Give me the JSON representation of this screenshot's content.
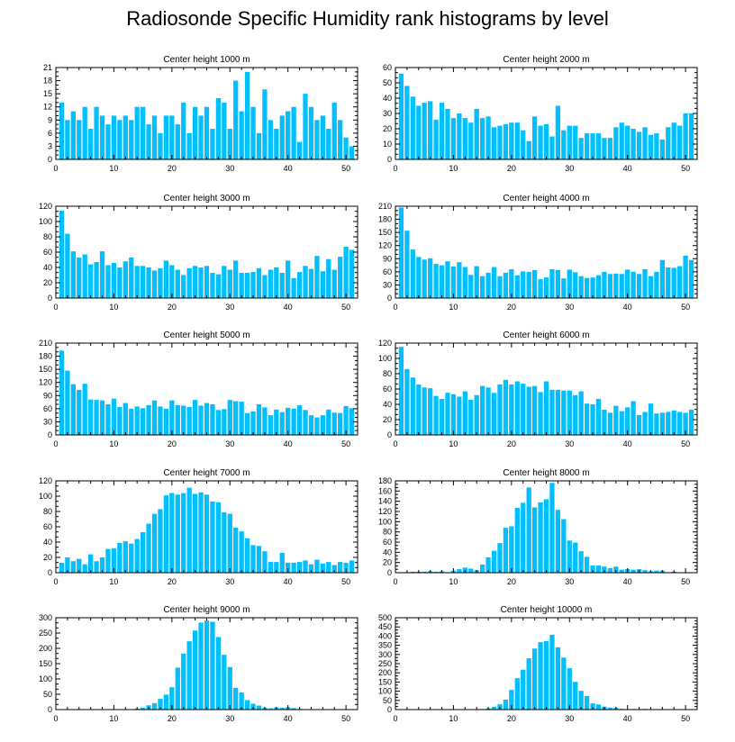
{
  "title": "Radiosonde Specific Humidity rank histograms by level",
  "colors": {
    "bar": "#00BFFF",
    "axis": "#000000",
    "background": "#ffffff"
  },
  "chart_data": [
    {
      "type": "bar",
      "title": "Center height 1000 m",
      "xlabel": "",
      "ylabel": "",
      "xlim": [
        0,
        52
      ],
      "ylim": [
        0,
        21
      ],
      "xticks": [
        0,
        10,
        20,
        30,
        40,
        50
      ],
      "yticks": [
        0,
        3,
        6,
        9,
        12,
        15,
        18,
        21
      ],
      "x": [
        1,
        2,
        3,
        4,
        5,
        6,
        7,
        8,
        9,
        10,
        11,
        12,
        13,
        14,
        15,
        16,
        17,
        18,
        19,
        20,
        21,
        22,
        23,
        24,
        25,
        26,
        27,
        28,
        29,
        30,
        31,
        32,
        33,
        34,
        35,
        36,
        37,
        38,
        39,
        40,
        41,
        42,
        43,
        44,
        45,
        46,
        47,
        48,
        49,
        50,
        51
      ],
      "values": [
        13,
        9,
        11,
        9,
        12,
        7,
        12,
        10,
        8,
        10,
        9,
        10,
        9,
        12,
        12,
        8,
        10,
        6,
        10,
        10,
        8,
        13,
        6,
        12,
        10,
        12,
        7,
        14,
        13,
        7,
        18,
        11,
        20,
        12,
        6,
        16,
        9,
        7,
        10,
        11,
        12,
        4,
        15,
        12,
        9,
        10,
        7,
        13,
        9,
        5,
        3
      ]
    },
    {
      "type": "bar",
      "title": "Center height 2000 m",
      "xlabel": "",
      "ylabel": "",
      "xlim": [
        0,
        52
      ],
      "ylim": [
        0,
        60
      ],
      "xticks": [
        0,
        10,
        20,
        30,
        40,
        50
      ],
      "yticks": [
        0,
        10,
        20,
        30,
        40,
        50,
        60
      ],
      "x": [
        1,
        2,
        3,
        4,
        5,
        6,
        7,
        8,
        9,
        10,
        11,
        12,
        13,
        14,
        15,
        16,
        17,
        18,
        19,
        20,
        21,
        22,
        23,
        24,
        25,
        26,
        27,
        28,
        29,
        30,
        31,
        32,
        33,
        34,
        35,
        36,
        37,
        38,
        39,
        40,
        41,
        42,
        43,
        44,
        45,
        46,
        47,
        48,
        49,
        50,
        51
      ],
      "values": [
        56,
        48,
        41,
        35,
        37,
        38,
        26,
        37,
        33,
        27,
        30,
        27,
        24,
        33,
        27,
        28,
        21,
        22,
        23,
        24,
        24,
        19,
        12,
        28,
        22,
        23,
        15,
        35,
        19,
        22,
        22,
        14,
        17,
        17,
        17,
        14,
        14,
        21,
        24,
        22,
        20,
        18,
        21,
        16,
        17,
        13,
        21,
        24,
        22,
        30,
        30
      ]
    },
    {
      "type": "bar",
      "title": "Center height 3000 m",
      "xlabel": "",
      "ylabel": "",
      "xlim": [
        0,
        52
      ],
      "ylim": [
        0,
        120
      ],
      "xticks": [
        0,
        10,
        20,
        30,
        40,
        50
      ],
      "yticks": [
        0,
        20,
        40,
        60,
        80,
        100,
        120
      ],
      "x": [
        1,
        2,
        3,
        4,
        5,
        6,
        7,
        8,
        9,
        10,
        11,
        12,
        13,
        14,
        15,
        16,
        17,
        18,
        19,
        20,
        21,
        22,
        23,
        24,
        25,
        26,
        27,
        28,
        29,
        30,
        31,
        32,
        33,
        34,
        35,
        36,
        37,
        38,
        39,
        40,
        41,
        42,
        43,
        44,
        45,
        46,
        47,
        48,
        49,
        50,
        51
      ],
      "values": [
        114,
        84,
        61,
        53,
        57,
        44,
        47,
        61,
        43,
        46,
        40,
        48,
        53,
        42,
        42,
        40,
        36,
        39,
        49,
        43,
        37,
        30,
        39,
        42,
        40,
        42,
        33,
        31,
        42,
        37,
        49,
        33,
        33,
        34,
        39,
        30,
        37,
        40,
        33,
        49,
        26,
        34,
        42,
        38,
        55,
        35,
        51,
        37,
        54,
        67,
        63
      ]
    },
    {
      "type": "bar",
      "title": "Center height 4000 m",
      "xlabel": "",
      "ylabel": "",
      "xlim": [
        0,
        52
      ],
      "ylim": [
        0,
        210
      ],
      "xticks": [
        0,
        10,
        20,
        30,
        40,
        50
      ],
      "yticks": [
        0,
        30,
        60,
        90,
        120,
        150,
        180,
        210
      ],
      "x": [
        1,
        2,
        3,
        4,
        5,
        6,
        7,
        8,
        9,
        10,
        11,
        12,
        13,
        14,
        15,
        16,
        17,
        18,
        19,
        20,
        21,
        22,
        23,
        24,
        25,
        26,
        27,
        28,
        29,
        30,
        31,
        32,
        33,
        34,
        35,
        36,
        37,
        38,
        39,
        40,
        41,
        42,
        43,
        44,
        45,
        46,
        47,
        48,
        49,
        50,
        51
      ],
      "values": [
        207,
        154,
        111,
        94,
        88,
        91,
        78,
        75,
        84,
        72,
        82,
        71,
        53,
        73,
        50,
        58,
        71,
        50,
        58,
        66,
        52,
        61,
        60,
        64,
        43,
        47,
        66,
        64,
        45,
        65,
        59,
        50,
        46,
        47,
        52,
        60,
        55,
        56,
        55,
        65,
        60,
        55,
        66,
        50,
        60,
        87,
        70,
        69,
        73,
        97,
        87
      ]
    },
    {
      "type": "bar",
      "title": "Center height 5000 m",
      "xlabel": "",
      "ylabel": "",
      "xlim": [
        0,
        52
      ],
      "ylim": [
        0,
        210
      ],
      "xticks": [
        0,
        10,
        20,
        30,
        40,
        50
      ],
      "yticks": [
        0,
        30,
        60,
        90,
        120,
        150,
        180,
        210
      ],
      "x": [
        1,
        2,
        3,
        4,
        5,
        6,
        7,
        8,
        9,
        10,
        11,
        12,
        13,
        14,
        15,
        16,
        17,
        18,
        19,
        20,
        21,
        22,
        23,
        24,
        25,
        26,
        27,
        28,
        29,
        30,
        31,
        32,
        33,
        34,
        35,
        36,
        37,
        38,
        39,
        40,
        41,
        42,
        43,
        44,
        45,
        46,
        47,
        48,
        49,
        50,
        51
      ],
      "values": [
        193,
        147,
        116,
        103,
        117,
        81,
        80,
        79,
        70,
        83,
        64,
        73,
        60,
        65,
        61,
        68,
        79,
        65,
        60,
        79,
        68,
        67,
        64,
        80,
        67,
        73,
        70,
        57,
        59,
        80,
        77,
        76,
        50,
        54,
        70,
        63,
        45,
        58,
        52,
        62,
        60,
        68,
        57,
        45,
        40,
        45,
        58,
        51,
        50,
        66,
        61
      ]
    },
    {
      "type": "bar",
      "title": "Center height 6000 m",
      "xlabel": "",
      "ylabel": "",
      "xlim": [
        0,
        52
      ],
      "ylim": [
        0,
        120
      ],
      "xticks": [
        0,
        10,
        20,
        30,
        40,
        50
      ],
      "yticks": [
        0,
        20,
        40,
        60,
        80,
        100,
        120
      ],
      "x": [
        1,
        2,
        3,
        4,
        5,
        6,
        7,
        8,
        9,
        10,
        11,
        12,
        13,
        14,
        15,
        16,
        17,
        18,
        19,
        20,
        21,
        22,
        23,
        24,
        25,
        26,
        27,
        28,
        29,
        30,
        31,
        32,
        33,
        34,
        35,
        36,
        37,
        38,
        39,
        40,
        41,
        42,
        43,
        44,
        45,
        46,
        47,
        48,
        49,
        50,
        51
      ],
      "values": [
        115,
        86,
        75,
        66,
        62,
        61,
        51,
        47,
        55,
        53,
        50,
        57,
        46,
        52,
        64,
        62,
        55,
        66,
        72,
        66,
        70,
        67,
        63,
        64,
        56,
        70,
        59,
        59,
        58,
        58,
        52,
        57,
        41,
        40,
        47,
        33,
        29,
        38,
        31,
        36,
        44,
        26,
        30,
        41,
        28,
        29,
        30,
        32,
        30,
        29,
        33
      ]
    },
    {
      "type": "bar",
      "title": "Center height 7000 m",
      "xlabel": "",
      "ylabel": "",
      "xlim": [
        0,
        52
      ],
      "ylim": [
        0,
        120
      ],
      "xticks": [
        0,
        10,
        20,
        30,
        40,
        50
      ],
      "yticks": [
        0,
        20,
        40,
        60,
        80,
        100,
        120
      ],
      "x": [
        1,
        2,
        3,
        4,
        5,
        6,
        7,
        8,
        9,
        10,
        11,
        12,
        13,
        14,
        15,
        16,
        17,
        18,
        19,
        20,
        21,
        22,
        23,
        24,
        25,
        26,
        27,
        28,
        29,
        30,
        31,
        32,
        33,
        34,
        35,
        36,
        37,
        38,
        39,
        40,
        41,
        42,
        43,
        44,
        45,
        46,
        47,
        48,
        49,
        50,
        51
      ],
      "values": [
        13,
        20,
        15,
        18,
        11,
        24,
        15,
        20,
        31,
        32,
        39,
        41,
        38,
        44,
        53,
        64,
        77,
        83,
        101,
        104,
        102,
        104,
        111,
        103,
        105,
        102,
        93,
        92,
        79,
        77,
        59,
        54,
        45,
        36,
        35,
        28,
        14,
        14,
        26,
        13,
        13,
        14,
        16,
        11,
        17,
        12,
        14,
        10,
        14,
        13,
        16
      ]
    },
    {
      "type": "bar",
      "title": "Center height 8000 m",
      "xlabel": "",
      "ylabel": "",
      "xlim": [
        0,
        52
      ],
      "ylim": [
        0,
        180
      ],
      "xticks": [
        0,
        10,
        20,
        30,
        40,
        50
      ],
      "yticks": [
        0,
        20,
        40,
        60,
        80,
        100,
        120,
        140,
        160,
        180
      ],
      "x": [
        1,
        2,
        3,
        4,
        5,
        6,
        7,
        8,
        9,
        10,
        11,
        12,
        13,
        14,
        15,
        16,
        17,
        18,
        19,
        20,
        21,
        22,
        23,
        24,
        25,
        26,
        27,
        28,
        29,
        30,
        31,
        32,
        33,
        34,
        35,
        36,
        37,
        38,
        39,
        40,
        41,
        42,
        43,
        44,
        45,
        46,
        47,
        48,
        49,
        50,
        51
      ],
      "values": [
        1,
        1,
        2,
        2,
        2,
        3,
        2,
        3,
        1,
        4,
        7,
        10,
        8,
        5,
        16,
        30,
        43,
        58,
        88,
        91,
        127,
        137,
        167,
        128,
        138,
        144,
        176,
        123,
        105,
        63,
        59,
        42,
        31,
        14,
        14,
        12,
        9,
        12,
        6,
        7,
        6,
        7,
        5,
        3,
        4,
        4,
        1,
        2,
        0,
        1,
        0
      ]
    },
    {
      "type": "bar",
      "title": "Center height 9000 m",
      "xlabel": "",
      "ylabel": "",
      "xlim": [
        0,
        52
      ],
      "ylim": [
        0,
        300
      ],
      "xticks": [
        0,
        10,
        20,
        30,
        40,
        50
      ],
      "yticks": [
        0,
        50,
        100,
        150,
        200,
        250,
        300
      ],
      "x": [
        1,
        2,
        3,
        4,
        5,
        6,
        7,
        8,
        9,
        10,
        11,
        12,
        13,
        14,
        15,
        16,
        17,
        18,
        19,
        20,
        21,
        22,
        23,
        24,
        25,
        26,
        27,
        28,
        29,
        30,
        31,
        32,
        33,
        34,
        35,
        36,
        37,
        38,
        39,
        40,
        41,
        42,
        43,
        44,
        45,
        46,
        47,
        48,
        49,
        50,
        51
      ],
      "values": [
        0,
        0,
        0,
        0,
        0,
        0,
        0,
        0,
        0,
        0,
        0,
        0,
        1,
        3,
        6,
        14,
        21,
        35,
        49,
        73,
        137,
        183,
        223,
        258,
        284,
        291,
        287,
        237,
        179,
        139,
        71,
        56,
        31,
        19,
        13,
        6,
        4,
        7,
        6,
        8,
        5,
        2,
        1,
        1,
        0,
        0,
        0,
        0,
        0,
        0,
        0
      ]
    },
    {
      "type": "bar",
      "title": "Center height 10000 m",
      "xlabel": "",
      "ylabel": "",
      "xlim": [
        0,
        52
      ],
      "ylim": [
        0,
        500
      ],
      "xticks": [
        0,
        10,
        20,
        30,
        40,
        50
      ],
      "yticks": [
        0,
        50,
        100,
        150,
        200,
        250,
        300,
        350,
        400,
        450,
        500
      ],
      "x": [
        1,
        2,
        3,
        4,
        5,
        6,
        7,
        8,
        9,
        10,
        11,
        12,
        13,
        14,
        15,
        16,
        17,
        18,
        19,
        20,
        21,
        22,
        23,
        24,
        25,
        26,
        27,
        28,
        29,
        30,
        31,
        32,
        33,
        34,
        35,
        36,
        37,
        38,
        39,
        40,
        41,
        42,
        43,
        44,
        45,
        46,
        47,
        48,
        49,
        50,
        51
      ],
      "values": [
        0,
        0,
        0,
        0,
        0,
        0,
        0,
        0,
        0,
        0,
        0,
        0,
        1,
        2,
        3,
        7,
        15,
        29,
        54,
        107,
        171,
        217,
        279,
        332,
        367,
        373,
        407,
        339,
        283,
        225,
        151,
        102,
        74,
        34,
        28,
        16,
        11,
        9,
        4,
        2,
        3,
        2,
        4,
        1,
        1,
        0,
        0,
        0,
        0,
        0,
        0
      ]
    }
  ]
}
